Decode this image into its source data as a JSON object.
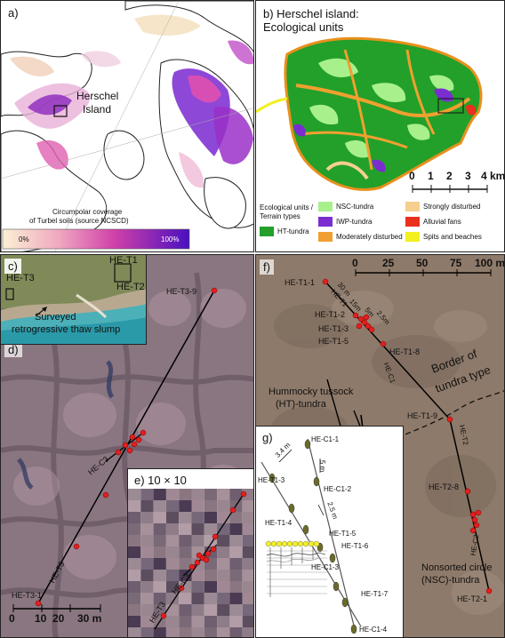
{
  "panel_a": {
    "label": "a)",
    "place": "Herschel\nIsland",
    "place_line1": "Herschel",
    "place_line2": "Island",
    "legend_title_line1": "Circumpolar coverage",
    "legend_title_line2": "of Turbel soils (source NCSCD)",
    "legend_min": "0%",
    "legend_max": "100%",
    "colors": {
      "low": "#f7e8c8",
      "mid": "#e040a0",
      "high": "#6a20c8"
    }
  },
  "panel_b": {
    "label_line1": "b) Herschel island:",
    "label_line2": "Ecological units",
    "scalebar": [
      "0",
      "1",
      "2",
      "3",
      "4 km"
    ],
    "legend_heading_line1": "Ecological units /",
    "legend_heading_line2": "Terrain types",
    "legend": [
      {
        "name": "HT-tundra",
        "color": "#22a02a"
      },
      {
        "name": "NSC-tundra",
        "color": "#a8f08c"
      },
      {
        "name": "IWP-tundra",
        "color": "#7a2ed0"
      },
      {
        "name": "Moderately disturbed",
        "color": "#f0a030"
      },
      {
        "name": "Strongly disturbed",
        "color": "#f5cf8e"
      },
      {
        "name": "Alluvial fans",
        "color": "#e8301c"
      },
      {
        "name": "Spits and beaches",
        "color": "#f2f020"
      }
    ]
  },
  "panel_c": {
    "label": "c)",
    "he_t1": "HE-T1",
    "he_t2": "HE-T2",
    "he_t3": "HE-T3",
    "slump_line1": "Surveyed",
    "slump_line2": "retrogressive thaw slump"
  },
  "panel_d": {
    "label": "d)",
    "he_t3_9": "HE-T3-9",
    "he_t3_1": "HE-T3-1",
    "he_c3": "HE-C3",
    "he_t3": "HE-T3",
    "scalebar": [
      "0",
      "10",
      "20",
      "30 m"
    ]
  },
  "panel_e": {
    "label": "e) 10 × 10",
    "he_c3": "HE-C3",
    "he_t3": "HE-T3"
  },
  "panel_f": {
    "label": "f)",
    "scalebar": [
      "0",
      "25",
      "50",
      "75",
      "100 m"
    ],
    "points": {
      "t1_1": "HE-T1-1",
      "t1_2": "HE-T1-2",
      "t1_3": "HE-T1-3",
      "t1_5": "HE-T1-5",
      "t1_8": "HE-T1-8",
      "t1_9": "HE-T1-9",
      "t2_8": "HE-T2-8",
      "t2_1": "HE-T2-1"
    },
    "line_labels": {
      "t1": "HE-T1",
      "c1": "HE-C1",
      "t2": "HE-T2",
      "c2": "HE-C2"
    },
    "spacing": {
      "a": "30 m",
      "b": "15m",
      "c": "5m",
      "d": "2.5m"
    },
    "border_line1": "Border of",
    "border_line2": "tundra type",
    "ht_line1": "Hummocky tussock",
    "ht_line2": "(HT)-tundra",
    "nsc_line1": "Nonsorted circle",
    "nsc_line2": "(NSC)-tundra"
  },
  "panel_g": {
    "label": "g)",
    "points": {
      "c1_1": "HE-C1-1",
      "t1_3": "HE-T1-3",
      "c1_2": "HE-C1-2",
      "t1_4": "HE-T1-4",
      "t1_5": "HE-T1-5",
      "t1_6": "HE-T1-6",
      "c1_3": "HE-C1-3",
      "t1_7": "HE-T1-7",
      "c1_4": "HE-C1-4"
    },
    "dims": {
      "a": "3.4 m",
      "b": "5 m",
      "c": "2.5 m"
    }
  }
}
